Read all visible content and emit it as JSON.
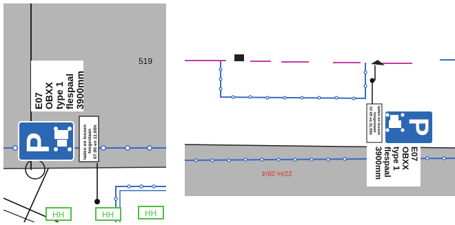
{
  "left_panel": {
    "plot_number": "519",
    "label": {
      "line1": "E07",
      "line2": "OBXX",
      "line3": "type 1",
      "line4": "flespaal",
      "line5": "3900mm"
    },
    "parking_sign": {
      "letter": "P",
      "subsign_line1": "laden en lossen",
      "subsign_line2": "toegestaan",
      "subsign_line3": "07.00 en 11.00h"
    },
    "hh_labels": [
      "HH",
      "HH",
      "HH"
    ]
  },
  "right_panel": {
    "label": {
      "line1": "E07",
      "line2": "OBXX",
      "line3": "type 1",
      "line4": "flespaal",
      "line5": "3900mm"
    },
    "parking_sign": {
      "letter": "P",
      "subsign_line1": "laden en lossen",
      "subsign_line2": "toegestaan",
      "subsign_line3": "07.00 en 11.00h"
    },
    "red_marking": "22/H-28/4"
  },
  "colors": {
    "road_gray": "#b5b5b5",
    "cable_blue": "#3a68c7",
    "sign_blue": "#2c67b3",
    "marking_red": "#d8322d",
    "magenta": "#c23aa6",
    "hh_green": "#4cbf3e"
  }
}
